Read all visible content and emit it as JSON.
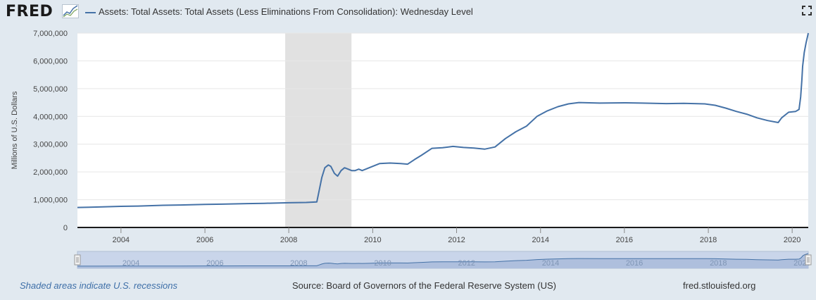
{
  "header": {
    "logo_text": "FRED",
    "logo_icon": "line-graph-icon",
    "fullscreen_icon": "fullscreen-icon"
  },
  "footer": {
    "recession_note": "Shaded areas indicate U.S. recessions",
    "source": "Source: Board of Governors of the Federal Reserve System (US)",
    "url": "fred.stlouisfed.org"
  },
  "colors": {
    "series": "#4572a7",
    "background": "#e1e9f0",
    "plot_background": "#ffffff",
    "recession": "#e1e1e1",
    "navigator_fill": "#c9d5ea"
  },
  "chart_data": {
    "type": "line",
    "title": "",
    "xlabel": "",
    "ylabel": "Millions of U.S. Dollars",
    "ylim": [
      0,
      7000000
    ],
    "xlim": [
      "2002-12-18",
      "2020-05-20"
    ],
    "yticks": [
      0,
      1000000,
      2000000,
      3000000,
      4000000,
      5000000,
      6000000,
      7000000
    ],
    "ytick_labels": [
      "0",
      "1,000,000",
      "2,000,000",
      "3,000,000",
      "4,000,000",
      "5,000,000",
      "6,000,000",
      "7,000,000"
    ],
    "xticks": [
      "2004",
      "2006",
      "2008",
      "2010",
      "2012",
      "2014",
      "2016",
      "2018",
      "2020"
    ],
    "grid": "horizontal",
    "legend": "top-left",
    "recessions": [
      [
        "2007-12-01",
        "2009-06-30"
      ]
    ],
    "series": [
      {
        "name": "Assets: Total Assets: Total Assets (Less Eliminations From Consolidation): Wednesday Level",
        "color": "#4572a7",
        "points": [
          [
            "2002-12-18",
            720000
          ],
          [
            "2003-06-01",
            735000
          ],
          [
            "2004-01-01",
            760000
          ],
          [
            "2004-06-01",
            770000
          ],
          [
            "2005-01-01",
            800000
          ],
          [
            "2005-06-01",
            810000
          ],
          [
            "2006-01-01",
            830000
          ],
          [
            "2006-06-01",
            840000
          ],
          [
            "2007-01-01",
            860000
          ],
          [
            "2007-06-01",
            870000
          ],
          [
            "2008-01-01",
            890000
          ],
          [
            "2008-06-01",
            900000
          ],
          [
            "2008-09-01",
            920000
          ],
          [
            "2008-09-20",
            1300000
          ],
          [
            "2008-10-15",
            1800000
          ],
          [
            "2008-11-10",
            2150000
          ],
          [
            "2008-12-10",
            2250000
          ],
          [
            "2009-01-01",
            2200000
          ],
          [
            "2009-02-01",
            1950000
          ],
          [
            "2009-03-01",
            1850000
          ],
          [
            "2009-04-01",
            2050000
          ],
          [
            "2009-05-01",
            2150000
          ],
          [
            "2009-06-01",
            2100000
          ],
          [
            "2009-07-01",
            2050000
          ],
          [
            "2009-08-01",
            2050000
          ],
          [
            "2009-09-01",
            2100000
          ],
          [
            "2009-10-01",
            2050000
          ],
          [
            "2009-11-01",
            2100000
          ],
          [
            "2009-12-01",
            2150000
          ],
          [
            "2010-03-01",
            2300000
          ],
          [
            "2010-06-01",
            2320000
          ],
          [
            "2010-09-01",
            2300000
          ],
          [
            "2010-11-01",
            2280000
          ],
          [
            "2011-01-01",
            2450000
          ],
          [
            "2011-03-01",
            2600000
          ],
          [
            "2011-06-01",
            2850000
          ],
          [
            "2011-09-01",
            2870000
          ],
          [
            "2011-12-01",
            2920000
          ],
          [
            "2012-03-01",
            2880000
          ],
          [
            "2012-06-01",
            2860000
          ],
          [
            "2012-09-01",
            2820000
          ],
          [
            "2012-12-01",
            2900000
          ],
          [
            "2013-03-01",
            3200000
          ],
          [
            "2013-06-01",
            3450000
          ],
          [
            "2013-09-01",
            3650000
          ],
          [
            "2013-12-01",
            4000000
          ],
          [
            "2014-03-01",
            4200000
          ],
          [
            "2014-06-01",
            4350000
          ],
          [
            "2014-09-01",
            4450000
          ],
          [
            "2014-12-01",
            4500000
          ],
          [
            "2015-06-01",
            4480000
          ],
          [
            "2016-01-01",
            4490000
          ],
          [
            "2016-06-01",
            4480000
          ],
          [
            "2017-01-01",
            4460000
          ],
          [
            "2017-06-01",
            4470000
          ],
          [
            "2017-12-01",
            4450000
          ],
          [
            "2018-03-01",
            4400000
          ],
          [
            "2018-06-01",
            4300000
          ],
          [
            "2018-09-01",
            4180000
          ],
          [
            "2018-12-01",
            4080000
          ],
          [
            "2019-03-01",
            3950000
          ],
          [
            "2019-06-01",
            3850000
          ],
          [
            "2019-09-01",
            3780000
          ],
          [
            "2019-10-01",
            3950000
          ],
          [
            "2019-12-01",
            4150000
          ],
          [
            "2020-02-01",
            4180000
          ],
          [
            "2020-03-01",
            4250000
          ],
          [
            "2020-03-15",
            4700000
          ],
          [
            "2020-03-25",
            5300000
          ],
          [
            "2020-04-01",
            5800000
          ],
          [
            "2020-04-15",
            6300000
          ],
          [
            "2020-05-01",
            6650000
          ],
          [
            "2020-05-15",
            6900000
          ],
          [
            "2020-05-20",
            7000000
          ]
        ]
      }
    ]
  }
}
